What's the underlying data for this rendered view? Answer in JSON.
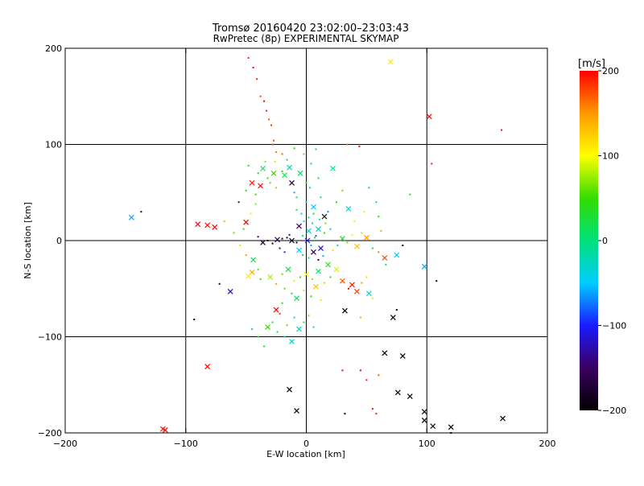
{
  "chart_data": {
    "type": "scatter",
    "title": "Tromsø 20160420 23:02:00–23:03:43",
    "subtitle": "RwPretec (8p) EXPERIMENTAL SKYMAP",
    "xlabel": "E-W location [km]",
    "ylabel": "N-S location [km]",
    "xlim": [
      -200,
      200
    ],
    "ylim": [
      -200,
      200
    ],
    "xticks": [
      -200,
      -100,
      0,
      100,
      200
    ],
    "yticks": [
      -200,
      -100,
      0,
      100,
      200
    ],
    "xtick_labels": [
      "−200",
      "−100",
      "0",
      "100",
      "200"
    ],
    "ytick_labels": [
      "−200",
      "−100",
      "0",
      "100",
      "200"
    ],
    "reference_lines": {
      "x": [
        -100,
        0,
        100
      ],
      "y": [
        -100,
        0,
        100
      ]
    },
    "colorbar": {
      "label": "[m/s]",
      "range": [
        -200,
        200
      ],
      "ticks": [
        -200,
        -100,
        0,
        100,
        200
      ],
      "tick_labels": [
        "−200",
        "−100",
        "0",
        "100",
        "200"
      ],
      "stops": [
        "#000000",
        "#3a0060",
        "#1a1aff",
        "#00ccff",
        "#00e07a",
        "#33dd00",
        "#ffff00",
        "#ff9900",
        "#ff0000"
      ]
    },
    "markers": {
      "large": "x",
      "small": "dot"
    },
    "points": [
      [
        -48,
        190,
        190,
        "s"
      ],
      [
        -44,
        180,
        200,
        "s"
      ],
      [
        -41,
        168,
        190,
        "s"
      ],
      [
        -38,
        150,
        180,
        "s"
      ],
      [
        -35,
        145,
        200,
        "s"
      ],
      [
        -33,
        135,
        190,
        "s"
      ],
      [
        -31,
        126,
        170,
        "s"
      ],
      [
        -29,
        120,
        185,
        "s"
      ],
      [
        -27,
        104,
        180,
        "s"
      ],
      [
        -28,
        100,
        175,
        "s"
      ],
      [
        -25,
        92,
        160,
        "s"
      ],
      [
        -20,
        90,
        170,
        "s"
      ],
      [
        70,
        186,
        110,
        "x"
      ],
      [
        102,
        129,
        200,
        "x"
      ],
      [
        104,
        80,
        190,
        "s"
      ],
      [
        162,
        115,
        200,
        "s"
      ],
      [
        -145,
        24,
        -60,
        "x"
      ],
      [
        -137,
        30,
        -180,
        "s"
      ],
      [
        -90,
        17,
        200,
        "x"
      ],
      [
        -82,
        16,
        200,
        "x"
      ],
      [
        -76,
        14,
        200,
        "x"
      ],
      [
        -50,
        19,
        200,
        "x"
      ],
      [
        -56,
        40,
        -150,
        "s"
      ],
      [
        -63,
        -53,
        -120,
        "x"
      ],
      [
        -72,
        -45,
        -190,
        "s"
      ],
      [
        -93,
        -82,
        -200,
        "s"
      ],
      [
        -82,
        -131,
        200,
        "x"
      ],
      [
        -117,
        -197,
        200,
        "x"
      ],
      [
        -119,
        -196,
        190,
        "x"
      ],
      [
        -45,
        60,
        190,
        "x"
      ],
      [
        -38,
        57,
        200,
        "x"
      ],
      [
        -32,
        65,
        30,
        "s"
      ],
      [
        -40,
        70,
        20,
        "s"
      ],
      [
        -27,
        70,
        50,
        "x"
      ],
      [
        -20,
        72,
        40,
        "s"
      ],
      [
        -36,
        75,
        10,
        "x"
      ],
      [
        -30,
        60,
        60,
        "s"
      ],
      [
        -25,
        55,
        140,
        "s"
      ],
      [
        -18,
        68,
        20,
        "x"
      ],
      [
        -14,
        76,
        -20,
        "x"
      ],
      [
        -12,
        60,
        -170,
        "x"
      ],
      [
        -10,
        50,
        -60,
        "s"
      ],
      [
        -8,
        45,
        20,
        "s"
      ],
      [
        -5,
        70,
        10,
        "x"
      ],
      [
        0,
        40,
        -30,
        "s"
      ],
      [
        3,
        55,
        -10,
        "s"
      ],
      [
        6,
        35,
        -50,
        "x"
      ],
      [
        10,
        65,
        30,
        "s"
      ],
      [
        12,
        45,
        -20,
        "s"
      ],
      [
        15,
        25,
        -200,
        "x"
      ],
      [
        18,
        30,
        -70,
        "s"
      ],
      [
        22,
        75,
        -10,
        "x"
      ],
      [
        25,
        40,
        40,
        "s"
      ],
      [
        30,
        52,
        60,
        "s"
      ],
      [
        35,
        33,
        -30,
        "x"
      ],
      [
        40,
        20,
        90,
        "s"
      ],
      [
        -6,
        15,
        -150,
        "x"
      ],
      [
        -2,
        20,
        -20,
        "s"
      ],
      [
        2,
        10,
        -40,
        "x"
      ],
      [
        5,
        18,
        10,
        "s"
      ],
      [
        8,
        5,
        -80,
        "s"
      ],
      [
        10,
        12,
        -30,
        "x"
      ],
      [
        -3,
        5,
        0,
        "s"
      ],
      [
        1,
        0,
        -100,
        "x"
      ],
      [
        4,
        -5,
        -60,
        "s"
      ],
      [
        7,
        3,
        20,
        "s"
      ],
      [
        12,
        -8,
        -110,
        "x"
      ],
      [
        15,
        8,
        50,
        "s"
      ],
      [
        -8,
        -2,
        -180,
        "s"
      ],
      [
        -12,
        0,
        -200,
        "x"
      ],
      [
        -16,
        3,
        -170,
        "s"
      ],
      [
        -20,
        2,
        -190,
        "s"
      ],
      [
        -24,
        1,
        -160,
        "x"
      ],
      [
        -28,
        -3,
        -200,
        "s"
      ],
      [
        -32,
        0,
        -150,
        "s"
      ],
      [
        -36,
        -2,
        -180,
        "x"
      ],
      [
        -40,
        4,
        -130,
        "s"
      ],
      [
        -22,
        -8,
        -150,
        "s"
      ],
      [
        -18,
        -12,
        -100,
        "s"
      ],
      [
        -14,
        6,
        -140,
        "s"
      ],
      [
        -6,
        -10,
        -50,
        "x"
      ],
      [
        -3,
        -15,
        10,
        "s"
      ],
      [
        2,
        -18,
        -20,
        "s"
      ],
      [
        6,
        -12,
        -160,
        "x"
      ],
      [
        10,
        -20,
        -180,
        "s"
      ],
      [
        14,
        -16,
        -60,
        "s"
      ],
      [
        18,
        -25,
        40,
        "x"
      ],
      [
        22,
        -10,
        120,
        "s"
      ],
      [
        26,
        -5,
        -20,
        "s"
      ],
      [
        30,
        2,
        30,
        "x"
      ],
      [
        34,
        -2,
        60,
        "s"
      ],
      [
        38,
        6,
        110,
        "s"
      ],
      [
        42,
        -6,
        130,
        "x"
      ],
      [
        46,
        8,
        80,
        "s"
      ],
      [
        50,
        3,
        150,
        "x"
      ],
      [
        55,
        -8,
        30,
        "s"
      ],
      [
        60,
        -12,
        160,
        "s"
      ],
      [
        65,
        -18,
        180,
        "x"
      ],
      [
        75,
        -15,
        -50,
        "x"
      ],
      [
        80,
        -5,
        -200,
        "s"
      ],
      [
        -44,
        -20,
        20,
        "x"
      ],
      [
        -40,
        -30,
        60,
        "s"
      ],
      [
        -45,
        -33,
        140,
        "x"
      ],
      [
        -48,
        -37,
        110,
        "x"
      ],
      [
        -38,
        -40,
        30,
        "s"
      ],
      [
        -30,
        -38,
        80,
        "x"
      ],
      [
        -25,
        -45,
        150,
        "s"
      ],
      [
        -20,
        -35,
        60,
        "s"
      ],
      [
        -15,
        -30,
        20,
        "x"
      ],
      [
        -10,
        -42,
        90,
        "s"
      ],
      [
        -5,
        -38,
        40,
        "s"
      ],
      [
        0,
        -35,
        100,
        "x"
      ],
      [
        5,
        -40,
        70,
        "s"
      ],
      [
        10,
        -32,
        10,
        "x"
      ],
      [
        15,
        -44,
        130,
        "s"
      ],
      [
        20,
        -38,
        50,
        "s"
      ],
      [
        25,
        -30,
        90,
        "x"
      ],
      [
        30,
        -42,
        170,
        "x"
      ],
      [
        35,
        -50,
        200,
        "s"
      ],
      [
        38,
        -46,
        190,
        "x"
      ],
      [
        42,
        -53,
        180,
        "x"
      ],
      [
        46,
        -44,
        150,
        "s"
      ],
      [
        50,
        -38,
        120,
        "s"
      ],
      [
        52,
        -55,
        -30,
        "x"
      ],
      [
        -18,
        -50,
        60,
        "s"
      ],
      [
        -12,
        -55,
        30,
        "s"
      ],
      [
        -8,
        -60,
        10,
        "x"
      ],
      [
        -2,
        -52,
        80,
        "s"
      ],
      [
        4,
        -58,
        40,
        "s"
      ],
      [
        8,
        -48,
        130,
        "x"
      ],
      [
        12,
        -62,
        90,
        "s"
      ],
      [
        -20,
        -65,
        40,
        "s"
      ],
      [
        -25,
        -72,
        200,
        "x"
      ],
      [
        -22,
        -76,
        190,
        "s"
      ],
      [
        -28,
        -85,
        30,
        "s"
      ],
      [
        -32,
        -90,
        50,
        "x"
      ],
      [
        -24,
        -95,
        10,
        "s"
      ],
      [
        -18,
        -100,
        -20,
        "s"
      ],
      [
        -12,
        -105,
        -40,
        "x"
      ],
      [
        -16,
        -88,
        60,
        "s"
      ],
      [
        -10,
        -80,
        20,
        "s"
      ],
      [
        -6,
        -92,
        -30,
        "x"
      ],
      [
        -2,
        -85,
        40,
        "s"
      ],
      [
        2,
        -78,
        70,
        "s"
      ],
      [
        6,
        -90,
        10,
        "s"
      ],
      [
        -40,
        -100,
        30,
        "s"
      ],
      [
        -45,
        -92,
        -10,
        "s"
      ],
      [
        -35,
        -110,
        20,
        "s"
      ],
      [
        32,
        -73,
        -200,
        "x"
      ],
      [
        45,
        -80,
        140,
        "s"
      ],
      [
        55,
        -60,
        90,
        "s"
      ],
      [
        72,
        -80,
        -200,
        "x"
      ],
      [
        75,
        -72,
        -190,
        "s"
      ],
      [
        86,
        48,
        30,
        "s"
      ],
      [
        98,
        -27,
        -60,
        "x"
      ],
      [
        108,
        -42,
        -190,
        "s"
      ],
      [
        65,
        -117,
        -200,
        "x"
      ],
      [
        80,
        -120,
        -200,
        "x"
      ],
      [
        30,
        -135,
        200,
        "s"
      ],
      [
        45,
        -135,
        200,
        "s"
      ],
      [
        50,
        -145,
        190,
        "s"
      ],
      [
        60,
        -140,
        170,
        "s"
      ],
      [
        76,
        -158,
        -200,
        "x"
      ],
      [
        86,
        -162,
        -200,
        "x"
      ],
      [
        -14,
        -155,
        -200,
        "x"
      ],
      [
        -8,
        -177,
        -200,
        "x"
      ],
      [
        32,
        -180,
        -190,
        "s"
      ],
      [
        55,
        -175,
        200,
        "s"
      ],
      [
        58,
        -180,
        190,
        "s"
      ],
      [
        98,
        -178,
        -200,
        "x"
      ],
      [
        98,
        -187,
        -200,
        "x"
      ],
      [
        105,
        -193,
        -200,
        "x"
      ],
      [
        120,
        -194,
        -200,
        "x"
      ],
      [
        120,
        -200,
        -190,
        "s"
      ],
      [
        163,
        -185,
        -200,
        "x"
      ],
      [
        -68,
        20,
        140,
        "s"
      ],
      [
        -60,
        8,
        60,
        "s"
      ],
      [
        -52,
        12,
        30,
        "s"
      ],
      [
        -55,
        -5,
        90,
        "s"
      ],
      [
        -50,
        -15,
        150,
        "s"
      ],
      [
        -46,
        28,
        110,
        "s"
      ],
      [
        -42,
        38,
        70,
        "s"
      ],
      [
        60,
        25,
        50,
        "s"
      ],
      [
        58,
        40,
        30,
        "s"
      ],
      [
        52,
        55,
        10,
        "s"
      ],
      [
        48,
        30,
        110,
        "s"
      ],
      [
        62,
        10,
        140,
        "s"
      ],
      [
        66,
        -25,
        20,
        "s"
      ],
      [
        -4,
        28,
        -40,
        "s"
      ],
      [
        2,
        24,
        0,
        "s"
      ],
      [
        6,
        28,
        20,
        "s"
      ],
      [
        11,
        22,
        -10,
        "s"
      ],
      [
        16,
        18,
        60,
        "s"
      ],
      [
        20,
        12,
        -30,
        "s"
      ],
      [
        -8,
        32,
        30,
        "s"
      ],
      [
        0,
        60,
        40,
        "s"
      ],
      [
        4,
        80,
        20,
        "s"
      ],
      [
        -2,
        90,
        60,
        "s"
      ],
      [
        8,
        95,
        -20,
        "s"
      ],
      [
        -16,
        84,
        30,
        "s"
      ],
      [
        -50,
        52,
        20,
        "s"
      ],
      [
        -42,
        48,
        50,
        "s"
      ],
      [
        -48,
        78,
        40,
        "s"
      ],
      [
        -34,
        82,
        70,
        "s"
      ],
      [
        -26,
        82,
        90,
        "s"
      ],
      [
        34,
        100,
        160,
        "s"
      ],
      [
        44,
        98,
        200,
        "s"
      ],
      [
        -10,
        96,
        40,
        "s"
      ]
    ]
  }
}
